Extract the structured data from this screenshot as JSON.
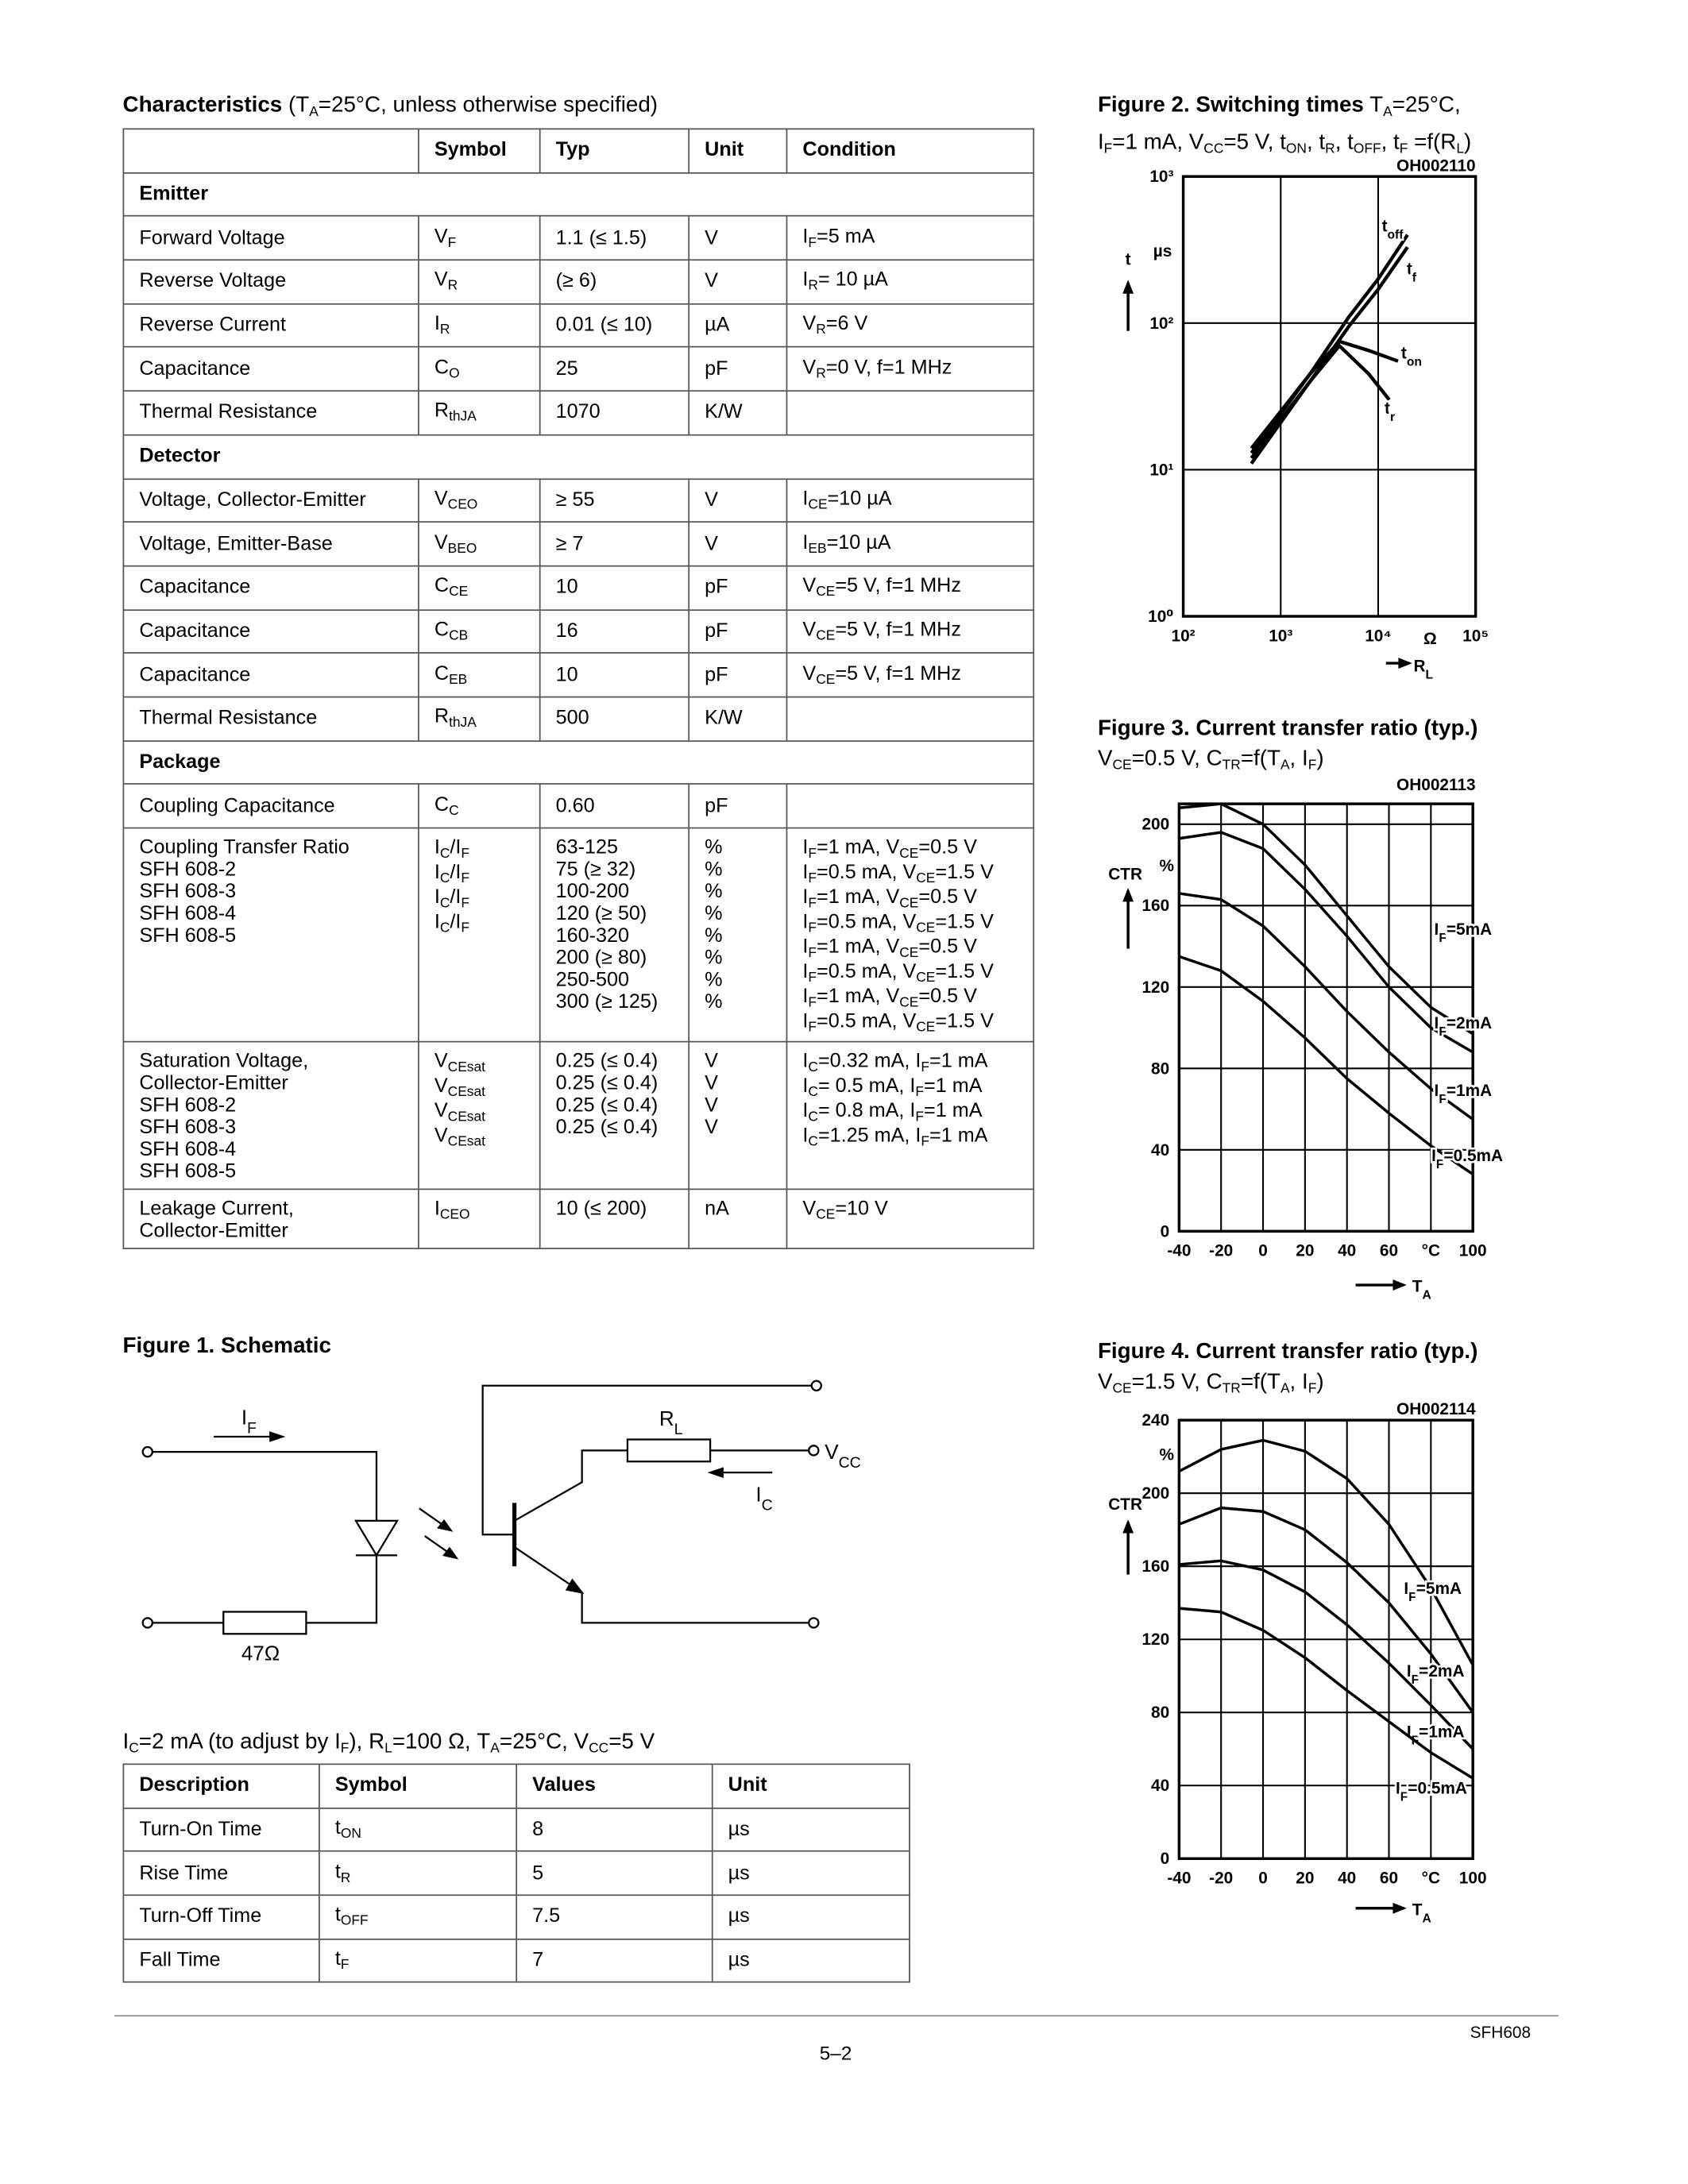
{
  "characteristics": {
    "title": "Characteristics",
    "subtitle": [
      "(T",
      "A",
      "=25°C, unless otherwise specified)"
    ],
    "header": [
      "Symbol",
      "Typ",
      "Unit",
      "Condition"
    ],
    "sections": [
      {
        "name": "Emitter",
        "rows": [
          {
            "param": "Forward Voltage",
            "symbol": [
              "V",
              "F"
            ],
            "typ": "1.1 (≤ 1.5)",
            "unit": "V",
            "condition": [
              "I",
              "F",
              "=5 mA"
            ]
          },
          {
            "param": "Reverse Voltage",
            "symbol": [
              "V",
              "R"
            ],
            "typ": "(≥ 6)",
            "unit": "V",
            "condition": [
              "I",
              "R",
              "= 10 µA"
            ]
          },
          {
            "param": "Reverse Current",
            "symbol": [
              "I",
              "R"
            ],
            "typ": "0.01 (≤ 10)",
            "unit": "µA",
            "condition": [
              "V",
              "R",
              "=6 V"
            ]
          },
          {
            "param": "Capacitance",
            "symbol": [
              "C",
              "O"
            ],
            "typ": "25",
            "unit": "pF",
            "condition": [
              "V",
              "R",
              "=0 V,  f=1 MHz"
            ]
          },
          {
            "param": "Thermal Resistance",
            "symbol": [
              "R",
              "thJA"
            ],
            "typ": "1070",
            "unit": "K/W"
          }
        ]
      },
      {
        "name": "Detector",
        "rows": [
          {
            "param": "Voltage, Collector-Emitter",
            "symbol": [
              "V",
              "CEO"
            ],
            "typ": "≥ 55",
            "unit": "V",
            "condition": [
              "I",
              "CE",
              "=10 µA"
            ]
          },
          {
            "param": "Voltage, Emitter-Base",
            "symbol": [
              "V",
              "BEO"
            ],
            "typ": "≥ 7",
            "unit": "V",
            "condition": [
              "I",
              "EB",
              "=10 µA"
            ]
          },
          {
            "param": "Capacitance",
            "symbol": [
              "C",
              "CE"
            ],
            "typ": "10",
            "unit": "pF",
            "condition": [
              "V",
              "CE",
              "=5 V, f=1 MHz"
            ]
          },
          {
            "param": "Capacitance",
            "symbol": [
              "C",
              "CB"
            ],
            "typ": "16",
            "unit": "pF",
            "condition": [
              "V",
              "CE",
              "=5 V, f=1 MHz"
            ]
          },
          {
            "param": "Capacitance",
            "symbol": [
              "C",
              "EB"
            ],
            "typ": "10",
            "unit": "pF",
            "condition": [
              "V",
              "CE",
              "=5 V, f=1 MHz"
            ]
          },
          {
            "param": "Thermal Resistance",
            "symbol": [
              "R",
              "thJA"
            ],
            "typ": "500",
            "unit": "K/W"
          }
        ]
      },
      {
        "name": "Package",
        "rows": [
          {
            "param": "Coupling Capacitance",
            "symbol": [
              "C",
              "C"
            ],
            "typ": "0.60",
            "unit": "pF"
          },
          {
            "lines": [
              {
                "param": "Coupling Transfer Ratio"
              },
              {
                "param": "SFH 608-2",
                "symbol": [
                  "I",
                  "C",
                  "/I",
                  "F"
                ],
                "typ": "63-125",
                "unit": "%",
                "condition": [
                  "I",
                  "F",
                  "=1 mA, V",
                  "CE",
                  "=0.5 V"
                ]
              },
              {
                "typ": "75 (≥ 32)",
                "unit": "%",
                "condition": [
                  "I",
                  "F",
                  "=0.5 mA, V",
                  "CE",
                  "=1.5 V"
                ]
              },
              {
                "param": "SFH 608-3",
                "symbol": [
                  "I",
                  "C",
                  "/I",
                  "F"
                ],
                "typ": "100-200",
                "unit": "%",
                "condition": [
                  "I",
                  "F",
                  "=1 mA, V",
                  "CE",
                  "=0.5 V"
                ]
              },
              {
                "typ": "120 (≥ 50)",
                "unit": "%",
                "condition": [
                  "I",
                  "F",
                  "=0.5 mA, V",
                  "CE",
                  "=1.5 V"
                ]
              },
              {
                "param": "SFH 608-4",
                "symbol": [
                  "I",
                  "C",
                  "/I",
                  "F"
                ],
                "typ": "160-320",
                "unit": "%",
                "condition": [
                  "I",
                  "F",
                  "=1 mA, V",
                  "CE",
                  "=0.5 V"
                ]
              },
              {
                "typ": "200 (≥ 80)",
                "unit": "%",
                "condition": [
                  "I",
                  "F",
                  "=0.5 mA, V",
                  "CE",
                  "=1.5 V"
                ]
              },
              {
                "param": "SFH 608-5",
                "symbol": [
                  "I",
                  "C",
                  "/I",
                  "F"
                ],
                "typ": "250-500",
                "unit": "%",
                "condition": [
                  "I",
                  "F",
                  "=1 mA, V",
                  "CE",
                  "=0.5 V"
                ]
              },
              {
                "typ": "300 (≥ 125)",
                "unit": "%",
                "condition": [
                  "I",
                  "F",
                  "=0.5 mA, V",
                  "CE",
                  "=1.5 V"
                ]
              }
            ]
          },
          {
            "lines": [
              {
                "param": "Saturation Voltage,"
              },
              {
                "param": "Collector-Emitter"
              },
              {
                "param": "SFH 608-2",
                "symbol": [
                  "V",
                  "CEsat"
                ],
                "typ": "0.25 (≤ 0.4)",
                "unit": "V",
                "condition": [
                  "I",
                  "C",
                  "=0.32 mA, I",
                  "F",
                  "=1 mA"
                ]
              },
              {
                "param": "SFH 608-3",
                "symbol": [
                  "V",
                  "CEsat"
                ],
                "typ": "0.25 (≤ 0.4)",
                "unit": "V",
                "condition": [
                  "I",
                  "C",
                  "= 0.5 mA, I",
                  "F",
                  "=1 mA"
                ]
              },
              {
                "param": "SFH 608-4",
                "symbol": [
                  "V",
                  "CEsat"
                ],
                "typ": "0.25 (≤ 0.4)",
                "unit": "V",
                "condition": [
                  "I",
                  "C",
                  "= 0.8 mA, I",
                  "F",
                  "=1 mA"
                ]
              },
              {
                "param": "SFH 608-5",
                "symbol": [
                  "V",
                  "CEsat"
                ],
                "typ": "0.25 (≤ 0.4)",
                "unit": "V",
                "condition": [
                  "I",
                  "C",
                  "=1.25 mA, I",
                  "F",
                  "=1 mA"
                ]
              }
            ]
          },
          {
            "lines": [
              {
                "param": "Leakage Current,"
              },
              {
                "param": "Collector-Emitter",
                "symbol": [
                  "I",
                  "CEO"
                ],
                "typ": "10 (≤ 200)",
                "unit": "nA",
                "condition": [
                  "V",
                  "CE",
                  "=10 V"
                ]
              }
            ]
          }
        ]
      }
    ]
  },
  "schematic": {
    "title": "Figure 1. Schematic",
    "if": [
      "I",
      "F"
    ],
    "rl": [
      "R",
      "L"
    ],
    "vcc": [
      "V",
      "CC"
    ],
    "ic": [
      "I",
      "C"
    ],
    "resistor": "47Ω"
  },
  "switching": {
    "caption": [
      "I",
      "C",
      "=2 mA (to adjust by I",
      "F",
      "), R",
      "L",
      "=100 Ω, T",
      "A",
      "=25°C, V",
      "CC",
      "=5 V"
    ],
    "header": [
      "Description",
      "Symbol",
      "Values",
      "Unit"
    ],
    "rows": [
      [
        "Turn-On Time",
        [
          "t",
          "ON"
        ],
        "8",
        "µs"
      ],
      [
        "Rise Time",
        [
          "t",
          "R"
        ],
        "5",
        "µs"
      ],
      [
        "Turn-Off Time",
        [
          "t",
          "OFF"
        ],
        "7.5",
        "µs"
      ],
      [
        "Fall Time",
        [
          "t",
          "F"
        ],
        "7",
        "µs"
      ]
    ]
  },
  "chart_data": [
    {
      "type": "line",
      "title": "Figure 2.  Switching times",
      "subtitle": [
        [
          "T",
          "A",
          "=25°C,"
        ],
        [
          "I",
          "F",
          "=1 mA, V",
          "CC",
          "=5 V, t",
          "ON",
          ", t",
          "R",
          ", t",
          "OFF",
          ", t",
          "F",
          " =f(R",
          "L",
          ")"
        ]
      ],
      "code": "OH002110",
      "x_label": [
        "R",
        "L"
      ],
      "y_label": "t",
      "x_unit": "Ω",
      "y_unit": "µs",
      "xlog": true,
      "ylog": true,
      "grid": true,
      "color": "#000000",
      "xlim": [
        100,
        100000
      ],
      "ylim": [
        1,
        1000
      ],
      "xticks": [
        {
          "value": 100,
          "label": "10²"
        },
        {
          "value": 1000,
          "label": "10³"
        },
        {
          "value": 10000,
          "label": "10⁴"
        },
        {
          "value": 100000,
          "label": "10⁵"
        }
      ],
      "yticks": [
        {
          "value": 1,
          "label": "10⁰"
        },
        {
          "value": 10,
          "label": "10¹"
        },
        {
          "value": 100,
          "label": "10²"
        },
        {
          "value": 1000,
          "label": "10³"
        }
      ],
      "series": [
        {
          "name": [
            "t",
            "off"
          ],
          "x": [
            500,
            1000,
            2000,
            5000,
            10000,
            20000
          ],
          "values": [
            14,
            25,
            45,
            110,
            200,
            400
          ]
        },
        {
          "name": [
            "t",
            "f"
          ],
          "x": [
            500,
            1000,
            2000,
            5000,
            10000,
            20000
          ],
          "values": [
            12,
            22,
            40,
            95,
            170,
            330
          ]
        },
        {
          "name": [
            "t",
            "on"
          ],
          "x": [
            500,
            1000,
            2000,
            4000,
            8000,
            16000
          ],
          "values": [
            13,
            24,
            45,
            75,
            65,
            55
          ]
        },
        {
          "name": [
            "t",
            "r"
          ],
          "x": [
            500,
            1000,
            2000,
            4000,
            8000,
            13000
          ],
          "values": [
            11,
            21,
            40,
            70,
            45,
            30
          ]
        }
      ]
    },
    {
      "type": "line",
      "title": "Figure 3.  Current transfer ratio (typ.)",
      "subtitle": [
        [
          "V",
          "CE",
          "=0.5 V, C",
          "TR",
          "=f(T",
          "A",
          ", I",
          "F",
          ")"
        ]
      ],
      "code": "OH002113",
      "x_label": [
        "T",
        "A"
      ],
      "y_label": "CTR",
      "y_unit": "%",
      "grid": true,
      "color": "#000000",
      "xlim": [
        -40,
        100
      ],
      "ylim": [
        0,
        210
      ],
      "xticks": [
        -40,
        -20,
        0,
        20,
        40,
        60,
        {
          "value": 80,
          "label": "°C"
        },
        100
      ],
      "yticks": [
        0,
        40,
        80,
        120,
        160,
        200
      ],
      "x": [
        -40,
        -20,
        0,
        20,
        40,
        60,
        80,
        100
      ],
      "series": [
        {
          "name": [
            "I",
            "F",
            "=5mA"
          ],
          "values": [
            208,
            210,
            200,
            180,
            155,
            130,
            110,
            97
          ]
        },
        {
          "name": [
            "I",
            "F",
            "=2mA"
          ],
          "values": [
            193,
            196,
            188,
            168,
            145,
            120,
            100,
            88
          ]
        },
        {
          "name": [
            "I",
            "F",
            "=1mA"
          ],
          "values": [
            166,
            163,
            150,
            130,
            108,
            88,
            70,
            55
          ]
        },
        {
          "name": [
            "I",
            "F",
            "=0.5mA"
          ],
          "values": [
            135,
            128,
            113,
            95,
            75,
            58,
            42,
            28
          ]
        }
      ]
    },
    {
      "type": "line",
      "title": "Figure 4.  Current transfer ratio (typ.)",
      "subtitle": [
        [
          "V",
          "CE",
          "=1.5 V, C",
          "TR",
          "=f(T",
          "A",
          ", I",
          "F",
          ")"
        ]
      ],
      "code": "OH002114",
      "x_label": [
        "T",
        "A"
      ],
      "y_label": "CTR",
      "y_unit": "%",
      "grid": true,
      "color": "#000000",
      "xlim": [
        -40,
        100
      ],
      "ylim": [
        0,
        240
      ],
      "xticks": [
        -40,
        -20,
        0,
        20,
        40,
        60,
        {
          "value": 80,
          "label": "°C"
        },
        100
      ],
      "yticks": [
        0,
        40,
        80,
        120,
        160,
        200,
        240
      ],
      "x": [
        -40,
        -20,
        0,
        20,
        40,
        60,
        80,
        100
      ],
      "series": [
        {
          "name": [
            "I",
            "F",
            "=5mA"
          ],
          "values": [
            212,
            224,
            229,
            223,
            208,
            183,
            148,
            106
          ]
        },
        {
          "name": [
            "I",
            "F",
            "=2mA"
          ],
          "values": [
            183,
            192,
            190,
            180,
            162,
            140,
            112,
            80
          ]
        },
        {
          "name": [
            "I",
            "F",
            "=1mA"
          ],
          "values": [
            161,
            163,
            158,
            146,
            128,
            107,
            84,
            60
          ]
        },
        {
          "name": [
            "I",
            "F",
            "=0.5mA"
          ],
          "values": [
            137,
            135,
            125,
            110,
            92,
            75,
            58,
            44
          ]
        }
      ]
    }
  ],
  "footer": {
    "doc": "SFH608",
    "page": "5–2"
  }
}
